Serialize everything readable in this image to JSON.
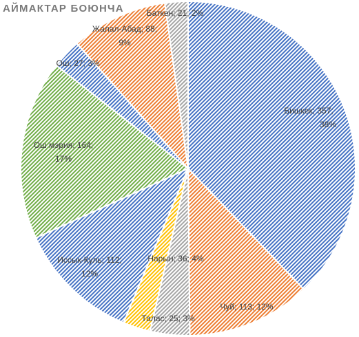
{
  "chart_data": {
    "type": "pie",
    "title": "АЙМАКТАР БОЮНЧА",
    "label_format": "{name}; {value}; {pct}",
    "slices": [
      {
        "name": "Бишкек",
        "value": 357,
        "pct": "38%",
        "color": "#4472c4"
      },
      {
        "name": "Чуй",
        "value": 113,
        "pct": "12%",
        "color": "#ed7d31"
      },
      {
        "name": "Нарын",
        "value": 36,
        "pct": "4%",
        "color": "#a5a5a5"
      },
      {
        "name": "Талас",
        "value": 25,
        "pct": "3%",
        "color": "#ffc000"
      },
      {
        "name": "Иссык-Куль",
        "value": 112,
        "pct": "12%",
        "color": "#4472c4"
      },
      {
        "name": "Ош мэрия",
        "value": 164,
        "pct": "17%",
        "color": "#70ad47"
      },
      {
        "name": "Ош",
        "value": 27,
        "pct": "3%",
        "color": "#4472c4"
      },
      {
        "name": "Жалал-Абад",
        "value": 88,
        "pct": "9%",
        "color": "#ed7d31"
      },
      {
        "name": "Баткен",
        "value": 21,
        "pct": "2%",
        "color": "#a5a5a5"
      }
    ],
    "start_angle": "12 o'clock",
    "direction": "clockwise",
    "fill_style": "diagonal hatch",
    "legend": "none"
  }
}
